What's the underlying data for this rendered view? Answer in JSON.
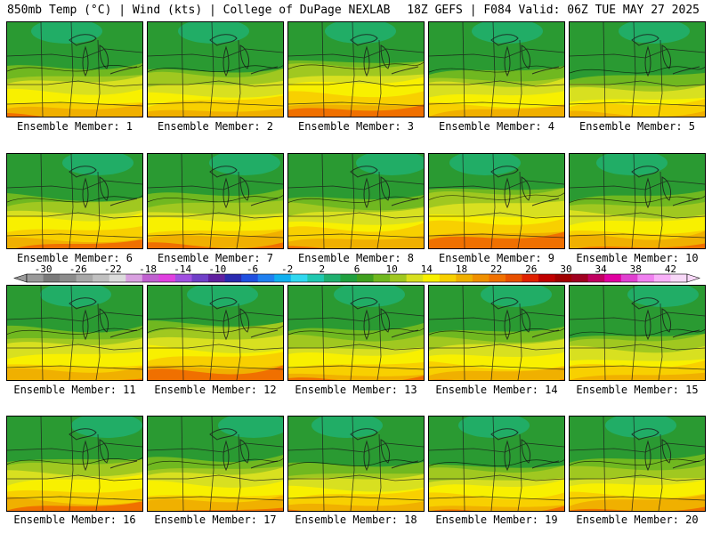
{
  "header": {
    "left": "850mb Temp (°C) | Wind (kts) | College of DuPage NEXLAB",
    "right": "18Z GEFS | F084 Valid: 06Z TUE MAY 27 2025"
  },
  "members": [
    {
      "label": "Ensemble Member: 1",
      "warmth": 0.5
    },
    {
      "label": "Ensemble Member: 2",
      "warmth": 0.45
    },
    {
      "label": "Ensemble Member: 3",
      "warmth": 0.75
    },
    {
      "label": "Ensemble Member: 4",
      "warmth": 0.4
    },
    {
      "label": "Ensemble Member: 5",
      "warmth": 0.3
    },
    {
      "label": "Ensemble Member: 6",
      "warmth": 0.6
    },
    {
      "label": "Ensemble Member: 7",
      "warmth": 0.62
    },
    {
      "label": "Ensemble Member: 8",
      "warmth": 0.55
    },
    {
      "label": "Ensemble Member: 9",
      "warmth": 0.85
    },
    {
      "label": "Ensemble Member: 10",
      "warmth": 0.55
    },
    {
      "label": "Ensemble Member: 11",
      "warmth": 0.55
    },
    {
      "label": "Ensemble Member: 12",
      "warmth": 0.75
    },
    {
      "label": "Ensemble Member: 13",
      "warmth": 0.5
    },
    {
      "label": "Ensemble Member: 14",
      "warmth": 0.5
    },
    {
      "label": "Ensemble Member: 15",
      "warmth": 0.4
    },
    {
      "label": "Ensemble Member: 16",
      "warmth": 0.65
    },
    {
      "label": "Ensemble Member: 17",
      "warmth": 0.55
    },
    {
      "label": "Ensemble Member: 18",
      "warmth": 0.45
    },
    {
      "label": "Ensemble Member: 19",
      "warmth": 0.45
    },
    {
      "label": "Ensemble Member: 20",
      "warmth": 0.55
    }
  ],
  "colorbar": {
    "ticks": [
      "-30",
      "-26",
      "-22",
      "-18",
      "-14",
      "-10",
      "-6",
      "-2",
      "2",
      "6",
      "10",
      "14",
      "18",
      "22",
      "26",
      "30",
      "34",
      "38",
      "42"
    ],
    "colors": [
      "#9a9a9a",
      "#7a7a7a",
      "#8c8c8c",
      "#a8a8a8",
      "#c0c0c0",
      "#dcdcdc",
      "#d9a0e0",
      "#c060d0",
      "#e040e0",
      "#a050e0",
      "#7040c8",
      "#6020a0",
      "#2a2ab0",
      "#2050e0",
      "#2080f0",
      "#10b0f0",
      "#30d8f0",
      "#20c8b0",
      "#20b070",
      "#20a040",
      "#40a020",
      "#70b820",
      "#a0c820",
      "#d8e020",
      "#f8f000",
      "#f8d000",
      "#f0b000",
      "#f09000",
      "#f07000",
      "#e85000",
      "#e02000",
      "#c00000",
      "#a00000",
      "#a00020",
      "#c00060",
      "#e000a0",
      "#e040d0",
      "#f080f0",
      "#f8b0f8",
      "#f8d8f8"
    ]
  }
}
